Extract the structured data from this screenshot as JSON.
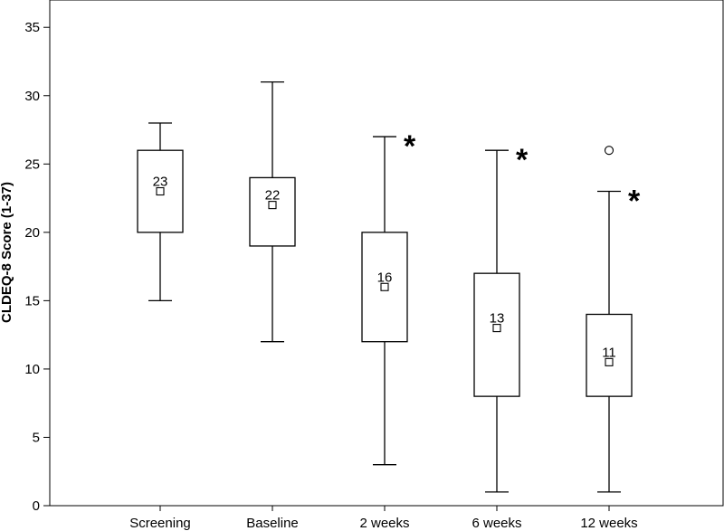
{
  "chart_data": {
    "type": "boxplot",
    "title": "",
    "xlabel": "",
    "ylabel": "CLDEQ-8 Score (1-37)",
    "ylim": [
      0,
      37
    ],
    "yticks": [
      0,
      5,
      10,
      15,
      20,
      25,
      30,
      35
    ],
    "categories": [
      "Screening",
      "Baseline",
      "2 weeks",
      "6 weeks",
      "12 weeks"
    ],
    "boxes": [
      {
        "category": "Screening",
        "whisker_low": 15,
        "q1": 20,
        "median": 23,
        "q3": 26,
        "whisker_high": 28,
        "median_label": "23",
        "significant": false,
        "outliers": []
      },
      {
        "category": "Baseline",
        "whisker_low": 12,
        "q1": 19,
        "median": 22,
        "q3": 24,
        "whisker_high": 31,
        "median_label": "22",
        "significant": false,
        "outliers": []
      },
      {
        "category": "2 weeks",
        "whisker_low": 3,
        "q1": 12,
        "median": 16,
        "q3": 20,
        "whisker_high": 27,
        "median_label": "16",
        "significant": true,
        "outliers": []
      },
      {
        "category": "6 weeks",
        "whisker_low": 1,
        "q1": 8,
        "median": 13,
        "q3": 17,
        "whisker_high": 26,
        "median_label": "13",
        "significant": true,
        "outliers": []
      },
      {
        "category": "12 weeks",
        "whisker_low": 1,
        "q1": 8,
        "median": 10.5,
        "q3": 14,
        "whisker_high": 23,
        "median_label": "11",
        "significant": true,
        "outliers": [
          26
        ]
      }
    ],
    "significance_marker": "*",
    "grid": false
  }
}
